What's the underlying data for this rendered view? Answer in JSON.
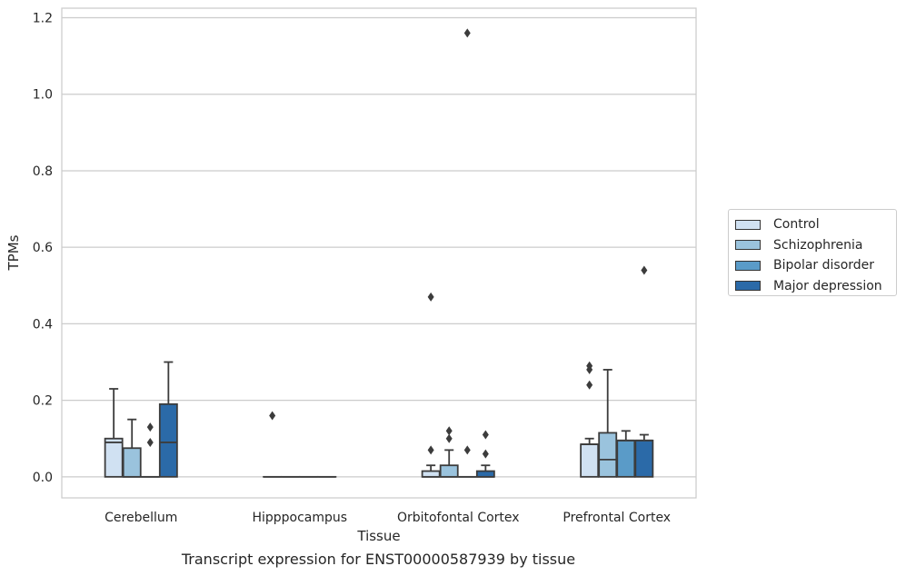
{
  "caption": "Transcript expression for ENST00000587939 by tissue",
  "chart_data": {
    "type": "boxplot",
    "title": "",
    "xlabel": "Tissue",
    "ylabel": "TPMs",
    "ylim": [
      -0.055,
      1.225
    ],
    "yticks": [
      0.0,
      0.2,
      0.4,
      0.6,
      0.8,
      1.0,
      1.2
    ],
    "ytick_labels": [
      "0.0",
      "0.2",
      "0.4",
      "0.6",
      "0.8",
      "1.0",
      "1.2"
    ],
    "grid": "horizontal",
    "legend_position": "right",
    "categories": [
      "Cerebellum",
      "Hipppocampus",
      "Orbitofontal Cortex",
      "Prefrontal Cortex"
    ],
    "series": [
      {
        "name": "Control",
        "color": "#d0e1f2",
        "boxes": [
          {
            "q1": 0.0,
            "median": 0.09,
            "q3": 0.1,
            "whisker_low": 0.0,
            "whisker_high": 0.23,
            "outliers": []
          },
          {
            "q1": 0.0,
            "median": 0.0,
            "q3": 0.0,
            "whisker_low": 0.0,
            "whisker_high": 0.0,
            "outliers": [
              0.16
            ]
          },
          {
            "q1": 0.0,
            "median": 0.0,
            "q3": 0.015,
            "whisker_low": 0.0,
            "whisker_high": 0.03,
            "outliers": [
              0.07,
              0.47
            ]
          },
          {
            "q1": 0.0,
            "median": 0.085,
            "q3": 0.085,
            "whisker_low": 0.0,
            "whisker_high": 0.1,
            "outliers": [
              0.24,
              0.28,
              0.29
            ]
          }
        ]
      },
      {
        "name": "Schizophrenia",
        "color": "#9ac3dd",
        "boxes": [
          {
            "q1": 0.0,
            "median": 0.0,
            "q3": 0.075,
            "whisker_low": 0.0,
            "whisker_high": 0.15,
            "outliers": []
          },
          {
            "q1": 0.0,
            "median": 0.0,
            "q3": 0.0,
            "whisker_low": 0.0,
            "whisker_high": 0.0,
            "outliers": []
          },
          {
            "q1": 0.0,
            "median": 0.0,
            "q3": 0.03,
            "whisker_low": 0.0,
            "whisker_high": 0.07,
            "outliers": [
              0.1,
              0.12
            ]
          },
          {
            "q1": 0.0,
            "median": 0.045,
            "q3": 0.115,
            "whisker_low": 0.0,
            "whisker_high": 0.28,
            "outliers": []
          }
        ]
      },
      {
        "name": "Bipolar disorder",
        "color": "#5a9bc8",
        "boxes": [
          {
            "q1": 0.0,
            "median": 0.0,
            "q3": 0.0,
            "whisker_low": 0.0,
            "whisker_high": 0.0,
            "outliers": [
              0.09,
              0.13
            ]
          },
          {
            "q1": 0.0,
            "median": 0.0,
            "q3": 0.0,
            "whisker_low": 0.0,
            "whisker_high": 0.0,
            "outliers": []
          },
          {
            "q1": 0.0,
            "median": 0.0,
            "q3": 0.0,
            "whisker_low": 0.0,
            "whisker_high": 0.0,
            "outliers": [
              0.07,
              1.16
            ]
          },
          {
            "q1": 0.0,
            "median": 0.095,
            "q3": 0.095,
            "whisker_low": 0.0,
            "whisker_high": 0.12,
            "outliers": []
          }
        ]
      },
      {
        "name": "Major depression",
        "color": "#2b6aa8",
        "boxes": [
          {
            "q1": 0.0,
            "median": 0.09,
            "q3": 0.19,
            "whisker_low": 0.0,
            "whisker_high": 0.3,
            "outliers": []
          },
          {
            "q1": 0.0,
            "median": 0.0,
            "q3": 0.0,
            "whisker_low": 0.0,
            "whisker_high": 0.0,
            "outliers": []
          },
          {
            "q1": 0.0,
            "median": 0.0,
            "q3": 0.015,
            "whisker_low": 0.0,
            "whisker_high": 0.03,
            "outliers": [
              0.06,
              0.11
            ]
          },
          {
            "q1": 0.0,
            "median": 0.095,
            "q3": 0.095,
            "whisker_low": 0.0,
            "whisker_high": 0.11,
            "outliers": [
              0.54
            ]
          }
        ]
      }
    ]
  }
}
